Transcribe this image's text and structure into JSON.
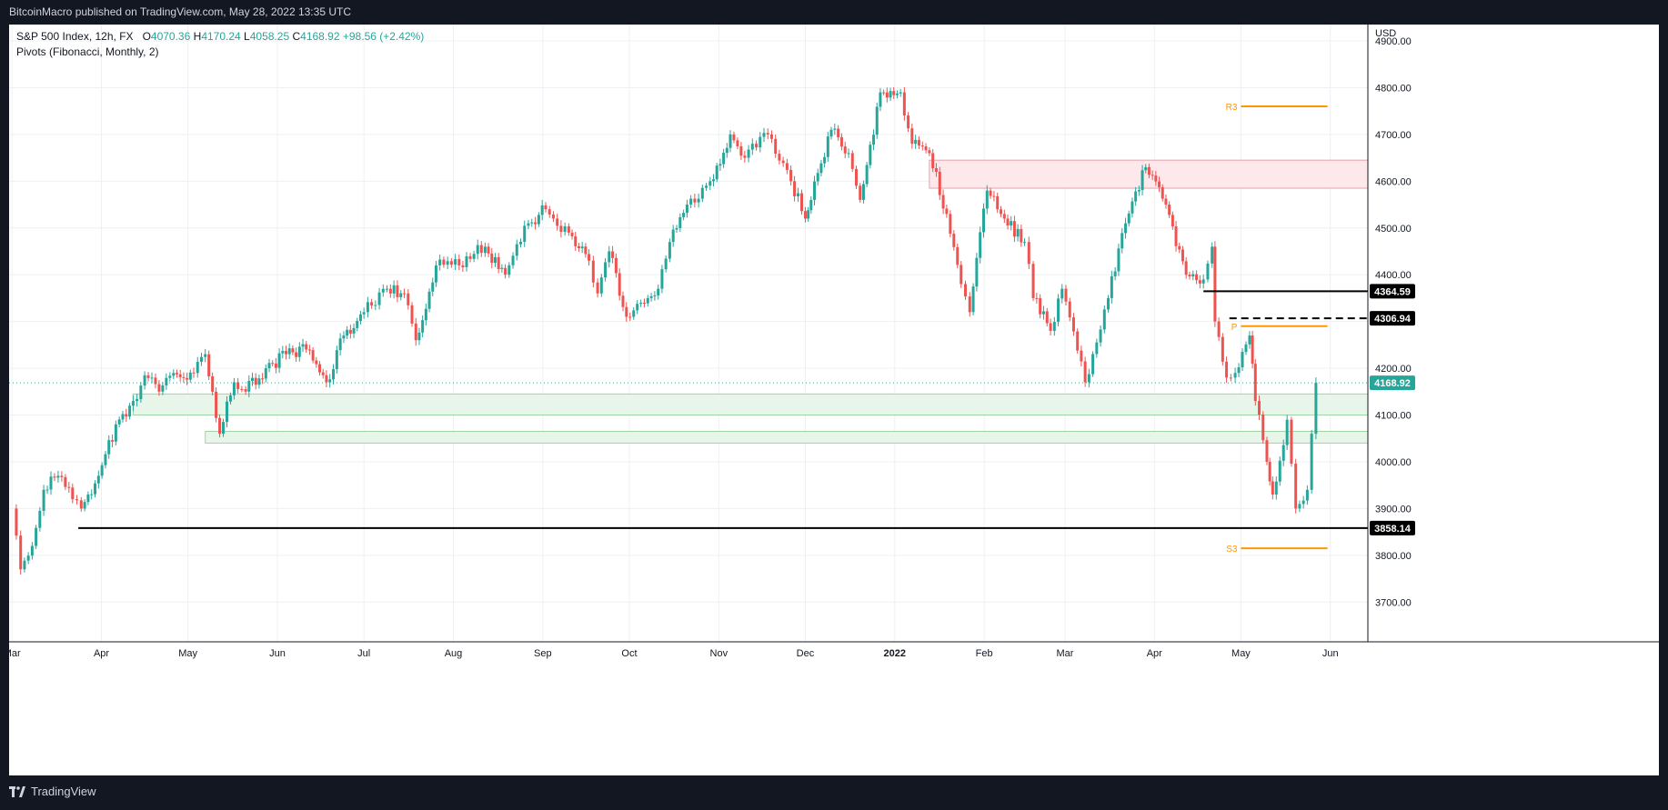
{
  "header": {
    "publisher": "BitcoinMacro published on TradingView.com, May 28, 2022 13:35 UTC"
  },
  "legend": {
    "symbol": "S&P 500 Index, 12h, FX",
    "open_label": "O",
    "open": "4070.36",
    "high_label": "H",
    "high": "4170.24",
    "low_label": "L",
    "low": "4058.25",
    "close_label": "C",
    "close": "4168.92",
    "change": "+98.56 (+2.42%)",
    "indicator": "Pivots (Fibonacci, Monthly, 2)"
  },
  "footer": {
    "brand": "TradingView"
  },
  "chart_data": {
    "type": "line",
    "currency": "USD",
    "y_ticks": [
      3700,
      3800,
      3900,
      4000,
      4100,
      4200,
      4300,
      4400,
      4500,
      4600,
      4700,
      4800,
      4900
    ],
    "y_tick_labels": [
      "3700.00",
      "3800.00",
      "3900.00",
      "4000.00",
      "4100.00",
      "4200.00",
      "4300.00",
      "4400.00",
      "4500.00",
      "4600.00",
      "4700.00",
      "4800.00",
      "4900.00"
    ],
    "ylim": [
      3615,
      4935
    ],
    "x_ticks": [
      {
        "label": "Mar",
        "date": "2021-03-01"
      },
      {
        "label": "Apr",
        "date": "2021-04-01"
      },
      {
        "label": "May",
        "date": "2021-05-01"
      },
      {
        "label": "Jun",
        "date": "2021-06-01"
      },
      {
        "label": "Jul",
        "date": "2021-07-01"
      },
      {
        "label": "Aug",
        "date": "2021-08-01"
      },
      {
        "label": "Sep",
        "date": "2021-09-01"
      },
      {
        "label": "Oct",
        "date": "2021-10-01"
      },
      {
        "label": "Nov",
        "date": "2021-11-01"
      },
      {
        "label": "Dec",
        "date": "2021-12-01"
      },
      {
        "label": "2022",
        "date": "2022-01-01"
      },
      {
        "label": "Feb",
        "date": "2022-02-01"
      },
      {
        "label": "Mar",
        "date": "2022-03-01"
      },
      {
        "label": "Apr",
        "date": "2022-04-01"
      },
      {
        "label": "May",
        "date": "2022-05-01"
      },
      {
        "label": "Jun",
        "date": "2022-06-01"
      }
    ],
    "series": [
      {
        "values": [
          [
            "2021-03-01",
            3900
          ],
          [
            "2021-03-04",
            3770
          ],
          [
            "2021-03-08",
            3820
          ],
          [
            "2021-03-12",
            3940
          ],
          [
            "2021-03-17",
            3970
          ],
          [
            "2021-03-22",
            3920
          ],
          [
            "2021-03-25",
            3900
          ],
          [
            "2021-03-31",
            3970
          ],
          [
            "2021-04-06",
            4080
          ],
          [
            "2021-04-12",
            4130
          ],
          [
            "2021-04-16",
            4185
          ],
          [
            "2021-04-21",
            4150
          ],
          [
            "2021-04-26",
            4190
          ],
          [
            "2021-05-03",
            4190
          ],
          [
            "2021-05-07",
            4230
          ],
          [
            "2021-05-12",
            4060
          ],
          [
            "2021-05-17",
            4170
          ],
          [
            "2021-05-21",
            4150
          ],
          [
            "2021-05-28",
            4200
          ],
          [
            "2021-06-04",
            4230
          ],
          [
            "2021-06-11",
            4240
          ],
          [
            "2021-06-18",
            4170
          ],
          [
            "2021-06-24",
            4270
          ],
          [
            "2021-07-01",
            4320
          ],
          [
            "2021-07-09",
            4370
          ],
          [
            "2021-07-15",
            4360
          ],
          [
            "2021-07-19",
            4260
          ],
          [
            "2021-07-26",
            4420
          ],
          [
            "2021-08-03",
            4420
          ],
          [
            "2021-08-12",
            4460
          ],
          [
            "2021-08-19",
            4400
          ],
          [
            "2021-08-27",
            4510
          ],
          [
            "2021-09-02",
            4540
          ],
          [
            "2021-09-10",
            4490
          ],
          [
            "2021-09-17",
            4430
          ],
          [
            "2021-09-20",
            4360
          ],
          [
            "2021-09-24",
            4450
          ],
          [
            "2021-09-30",
            4310
          ],
          [
            "2021-10-05",
            4340
          ],
          [
            "2021-10-11",
            4370
          ],
          [
            "2021-10-15",
            4470
          ],
          [
            "2021-10-21",
            4550
          ],
          [
            "2021-10-29",
            4600
          ],
          [
            "2021-11-05",
            4700
          ],
          [
            "2021-11-10",
            4650
          ],
          [
            "2021-11-18",
            4700
          ],
          [
            "2021-11-26",
            4600
          ],
          [
            "2021-12-01",
            4520
          ],
          [
            "2021-12-03",
            4560
          ],
          [
            "2021-12-10",
            4710
          ],
          [
            "2021-12-16",
            4660
          ],
          [
            "2021-12-20",
            4560
          ],
          [
            "2021-12-27",
            4790
          ],
          [
            "2022-01-03",
            4790
          ],
          [
            "2022-01-07",
            4680
          ],
          [
            "2022-01-13",
            4660
          ],
          [
            "2022-01-19",
            4530
          ],
          [
            "2022-01-24",
            4380
          ],
          [
            "2022-01-27",
            4320
          ],
          [
            "2022-02-02",
            4580
          ],
          [
            "2022-02-08",
            4520
          ],
          [
            "2022-02-15",
            4470
          ],
          [
            "2022-02-18",
            4350
          ],
          [
            "2022-02-24",
            4280
          ],
          [
            "2022-02-28",
            4370
          ],
          [
            "2022-03-08",
            4170
          ],
          [
            "2022-03-16",
            4350
          ],
          [
            "2022-03-22",
            4510
          ],
          [
            "2022-03-29",
            4630
          ],
          [
            "2022-04-05",
            4550
          ],
          [
            "2022-04-12",
            4400
          ],
          [
            "2022-04-18",
            4390
          ],
          [
            "2022-04-21",
            4460
          ],
          [
            "2022-04-22",
            4300
          ],
          [
            "2022-04-26",
            4180
          ],
          [
            "2022-04-29",
            4190
          ],
          [
            "2022-05-04",
            4270
          ],
          [
            "2022-05-06",
            4130
          ],
          [
            "2022-05-10",
            4000
          ],
          [
            "2022-05-12",
            3930
          ],
          [
            "2022-05-17",
            4090
          ],
          [
            "2022-05-20",
            3900
          ],
          [
            "2022-05-24",
            3940
          ],
          [
            "2022-05-27",
            4168.92
          ]
        ]
      }
    ],
    "last_price": 4168.92,
    "price_labels": [
      {
        "value": 4364.59,
        "label": "4364.59"
      },
      {
        "value": 4306.94,
        "label": "4306.94"
      },
      {
        "value": 4168.92,
        "label": "4168.92"
      },
      {
        "value": 3858.14,
        "label": "3858.14"
      }
    ],
    "horizontal_lines": [
      {
        "value": 4364.59,
        "from": "2022-04-18",
        "style": "solid",
        "color": "#000000"
      },
      {
        "value": 4306.94,
        "from": "2022-04-27",
        "style": "dashed",
        "color": "#000000"
      },
      {
        "value": 3858.14,
        "from": "2021-03-24",
        "style": "solid",
        "color": "#000000"
      }
    ],
    "zones": [
      {
        "low": 4585,
        "high": 4645,
        "from": "2022-01-13",
        "color": "pink"
      },
      {
        "low": 4100,
        "high": 4145,
        "from": "2021-04-12",
        "color": "green"
      },
      {
        "low": 4040,
        "high": 4065,
        "from": "2021-05-07",
        "color": "green"
      }
    ],
    "pivots": [
      {
        "label": "R3",
        "value": 4760,
        "from": "2022-05-01",
        "to": "2022-05-31"
      },
      {
        "label": "P",
        "value": 4290,
        "from": "2022-05-01",
        "to": "2022-05-31"
      },
      {
        "label": "S3",
        "value": 3815,
        "from": "2022-05-01",
        "to": "2022-05-31"
      }
    ],
    "colors": {
      "up": "#26a69a",
      "down": "#ef5350",
      "pivot": "#ff9800",
      "zone_green": "#e8f5e9",
      "zone_pink": "#fde8ec"
    },
    "grid": true
  }
}
